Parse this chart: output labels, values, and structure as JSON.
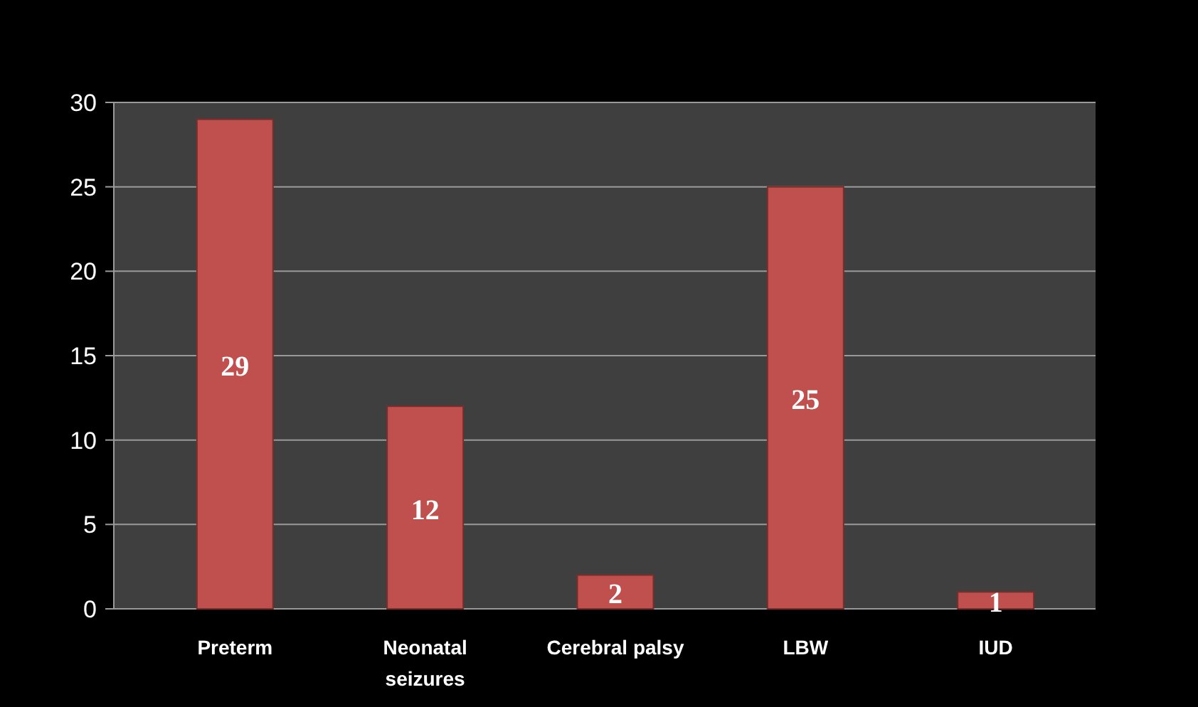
{
  "chart_data": {
    "type": "bar",
    "categories": [
      "Preterm",
      "Neonatal seizures",
      "Cerebral palsy",
      "LBW",
      "IUD"
    ],
    "values": [
      29,
      12,
      2,
      25,
      1
    ],
    "color": "#c0504d",
    "ylim": [
      0,
      30
    ],
    "yticks": [
      0,
      5,
      10,
      15,
      20,
      25,
      30
    ],
    "grid": "y",
    "data_labels": true
  }
}
